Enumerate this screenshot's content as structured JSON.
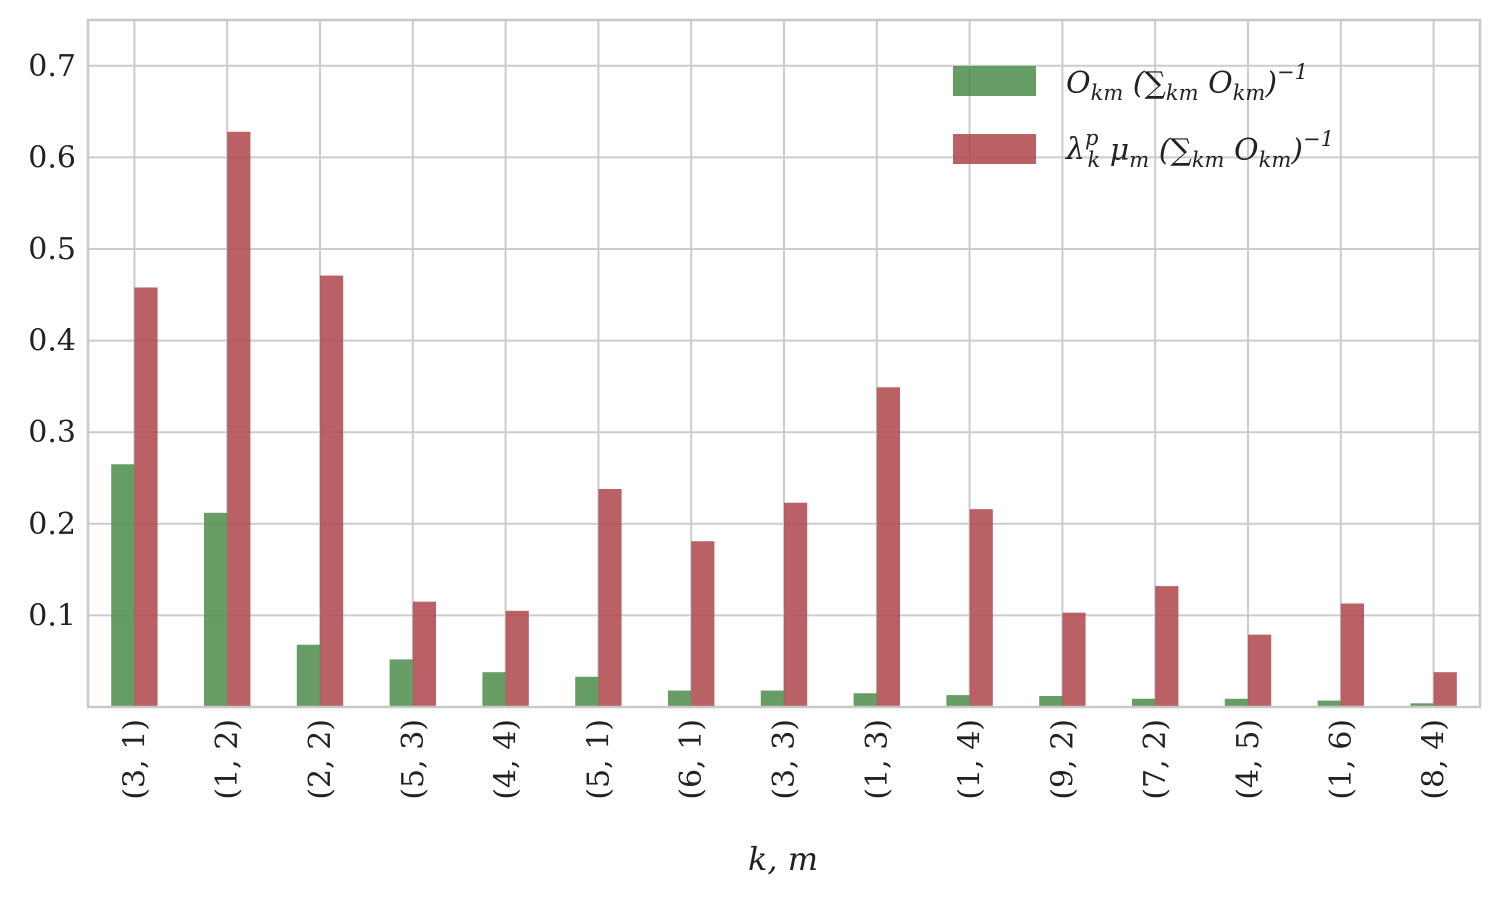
{
  "colors": {
    "series_1": "#4e8f4e",
    "series_2": "#b04a4e",
    "grid": "#cccccc",
    "frame": "#c8c8c8",
    "background": "#ffffff"
  },
  "chart_data": {
    "type": "bar",
    "title": "",
    "xlabel": "k, m",
    "ylabel": "",
    "ylim": [
      0,
      0.75
    ],
    "yticks": [
      "0.1",
      "0.2",
      "0.3",
      "0.4",
      "0.5",
      "0.6",
      "0.7"
    ],
    "grid": true,
    "legend_position": "top-right",
    "x_tick_rotation": "vertical",
    "categories": [
      "(3, 1)",
      "(1, 2)",
      "(2, 2)",
      "(5, 3)",
      "(4, 4)",
      "(5, 1)",
      "(6, 1)",
      "(3, 3)",
      "(1, 3)",
      "(1, 4)",
      "(9, 2)",
      "(7, 2)",
      "(4, 5)",
      "(1, 6)",
      "(8, 4)"
    ],
    "series": [
      {
        "name": "O_km (Σ_km O_km)^−1",
        "legend_text": [
          "O",
          "km",
          " (∑",
          "km",
          " O",
          "km",
          ")",
          "−1"
        ],
        "color": "#4e8f4e",
        "values": [
          0.265,
          0.212,
          0.068,
          0.052,
          0.038,
          0.033,
          0.018,
          0.018,
          0.015,
          0.013,
          0.012,
          0.009,
          0.009,
          0.007,
          0.004
        ]
      },
      {
        "name": "λ_k^p μ_m (Σ_km O_km)^−1",
        "legend_text": [
          "λ",
          "p",
          "k",
          " μ",
          "m",
          " (∑",
          "km",
          " O",
          "km",
          ")",
          "−1"
        ],
        "color": "#b04a4e",
        "values": [
          0.458,
          0.628,
          0.471,
          0.115,
          0.105,
          0.238,
          0.181,
          0.223,
          0.349,
          0.216,
          0.103,
          0.132,
          0.079,
          0.113,
          0.038
        ]
      }
    ]
  }
}
